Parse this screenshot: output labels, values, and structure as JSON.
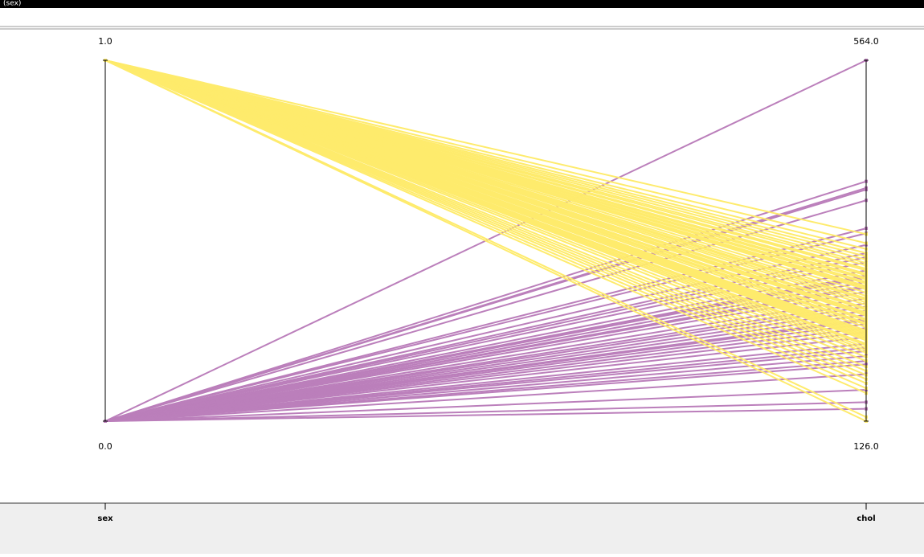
{
  "chart_data": {
    "type": "parallel",
    "title": "(sex)",
    "color_by": "sex",
    "colors": [
      "#bb7fbb",
      "#feeb6c"
    ],
    "dimensions": [
      {
        "name": "sex",
        "lim": [
          0,
          1
        ],
        "ticks": [
          {
            "value": 0,
            "label": "0.0"
          },
          {
            "value": 1,
            "label": "1.0"
          }
        ]
      },
      {
        "name": "chol",
        "lim": [
          126,
          564
        ],
        "ticks": [
          {
            "value": 126,
            "label": "126.0"
          },
          {
            "value": 564,
            "label": "564.0"
          }
        ]
      }
    ],
    "records": {
      "sex": [
        0,
        0,
        0,
        0,
        0,
        0,
        0,
        0,
        0,
        0,
        0,
        0,
        0,
        0,
        0,
        0,
        0,
        0,
        0,
        0,
        0,
        0,
        0,
        0,
        0,
        0,
        0,
        0,
        0,
        0,
        0,
        0,
        0,
        0,
        0,
        0,
        0,
        0,
        0,
        0,
        1,
        1,
        1,
        1,
        1,
        1,
        1,
        1,
        1,
        1,
        1,
        1,
        1,
        1,
        1,
        1,
        1,
        1,
        1,
        1,
        1,
        1,
        1,
        1,
        1,
        1,
        1,
        1,
        1,
        1,
        1,
        1,
        1,
        1,
        1,
        1,
        1,
        1,
        1,
        1,
        1,
        1,
        1,
        1,
        1,
        1,
        1,
        1,
        1,
        1,
        1,
        1,
        1,
        1,
        1,
        1,
        1,
        1
      ],
      "chol": [
        564,
        417,
        409,
        407,
        394,
        360,
        354,
        340,
        330,
        325,
        319,
        309,
        303,
        302,
        300,
        295,
        290,
        288,
        283,
        275,
        269,
        265,
        260,
        255,
        250,
        248,
        244,
        239,
        234,
        228,
        220,
        215,
        211,
        205,
        199,
        195,
        183,
        164,
        149,
        141,
        353,
        342,
        335,
        330,
        326,
        322,
        318,
        315,
        311,
        309,
        305,
        303,
        300,
        298,
        295,
        293,
        290,
        288,
        286,
        282,
        278,
        275,
        273,
        270,
        267,
        263,
        261,
        258,
        256,
        254,
        250,
        248,
        245,
        243,
        240,
        236,
        234,
        232,
        230,
        228,
        226,
        224,
        220,
        218,
        215,
        212,
        209,
        204,
        199,
        192,
        187,
        182,
        177,
        172,
        166,
        160,
        131,
        126
      ]
    }
  }
}
